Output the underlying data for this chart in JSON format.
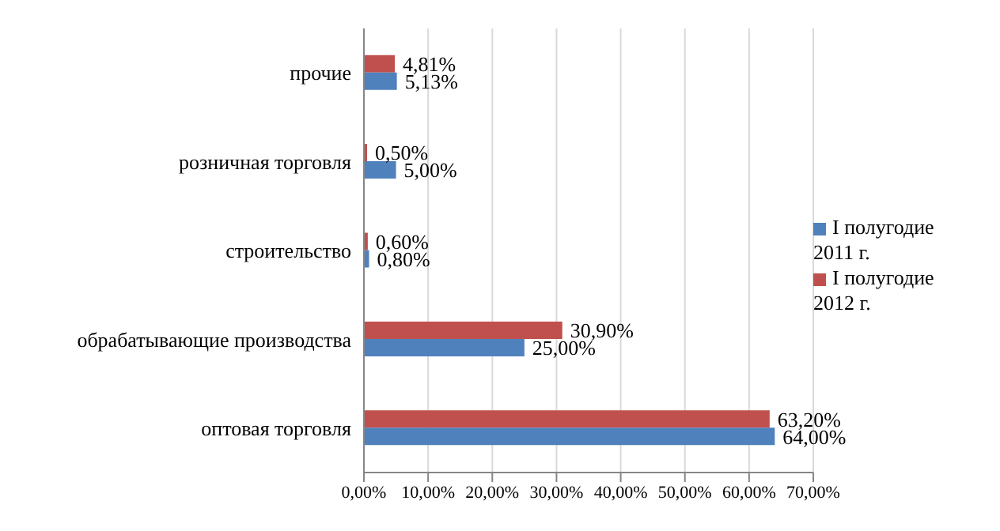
{
  "chart_data": {
    "type": "bar",
    "orientation": "horizontal",
    "categories": [
      "прочие",
      "розничная торговля",
      "строительство",
      "обрабатывающие производства",
      "оптовая торговля"
    ],
    "series": [
      {
        "name": "I полугодие 2012 г.",
        "color": "#c0504d",
        "values": [
          4.81,
          0.5,
          0.6,
          30.9,
          63.2
        ],
        "value_labels": [
          "4,81%",
          "0,50%",
          "0,60%",
          "30,90%",
          "63,20%"
        ]
      },
      {
        "name": "I полугодие 2011 г.",
        "color": "#4f81bd",
        "values": [
          5.13,
          5.0,
          0.8,
          25.0,
          64.0
        ],
        "value_labels": [
          "5,13%",
          "5,00%",
          "0,80%",
          "25,00%",
          "64,00%"
        ]
      }
    ],
    "xlim": [
      0,
      70
    ],
    "xticks": [
      {
        "value": 0,
        "label": "0,00%"
      },
      {
        "value": 10,
        "label": "10,00%"
      },
      {
        "value": 20,
        "label": "20,00%"
      },
      {
        "value": 30,
        "label": "30,00%"
      },
      {
        "value": 40,
        "label": "40,00%"
      },
      {
        "value": 50,
        "label": "50,00%"
      },
      {
        "value": 60,
        "label": "60,00%"
      },
      {
        "value": 70,
        "label": "70,00%"
      }
    ],
    "grid": "x",
    "legend": "right"
  }
}
